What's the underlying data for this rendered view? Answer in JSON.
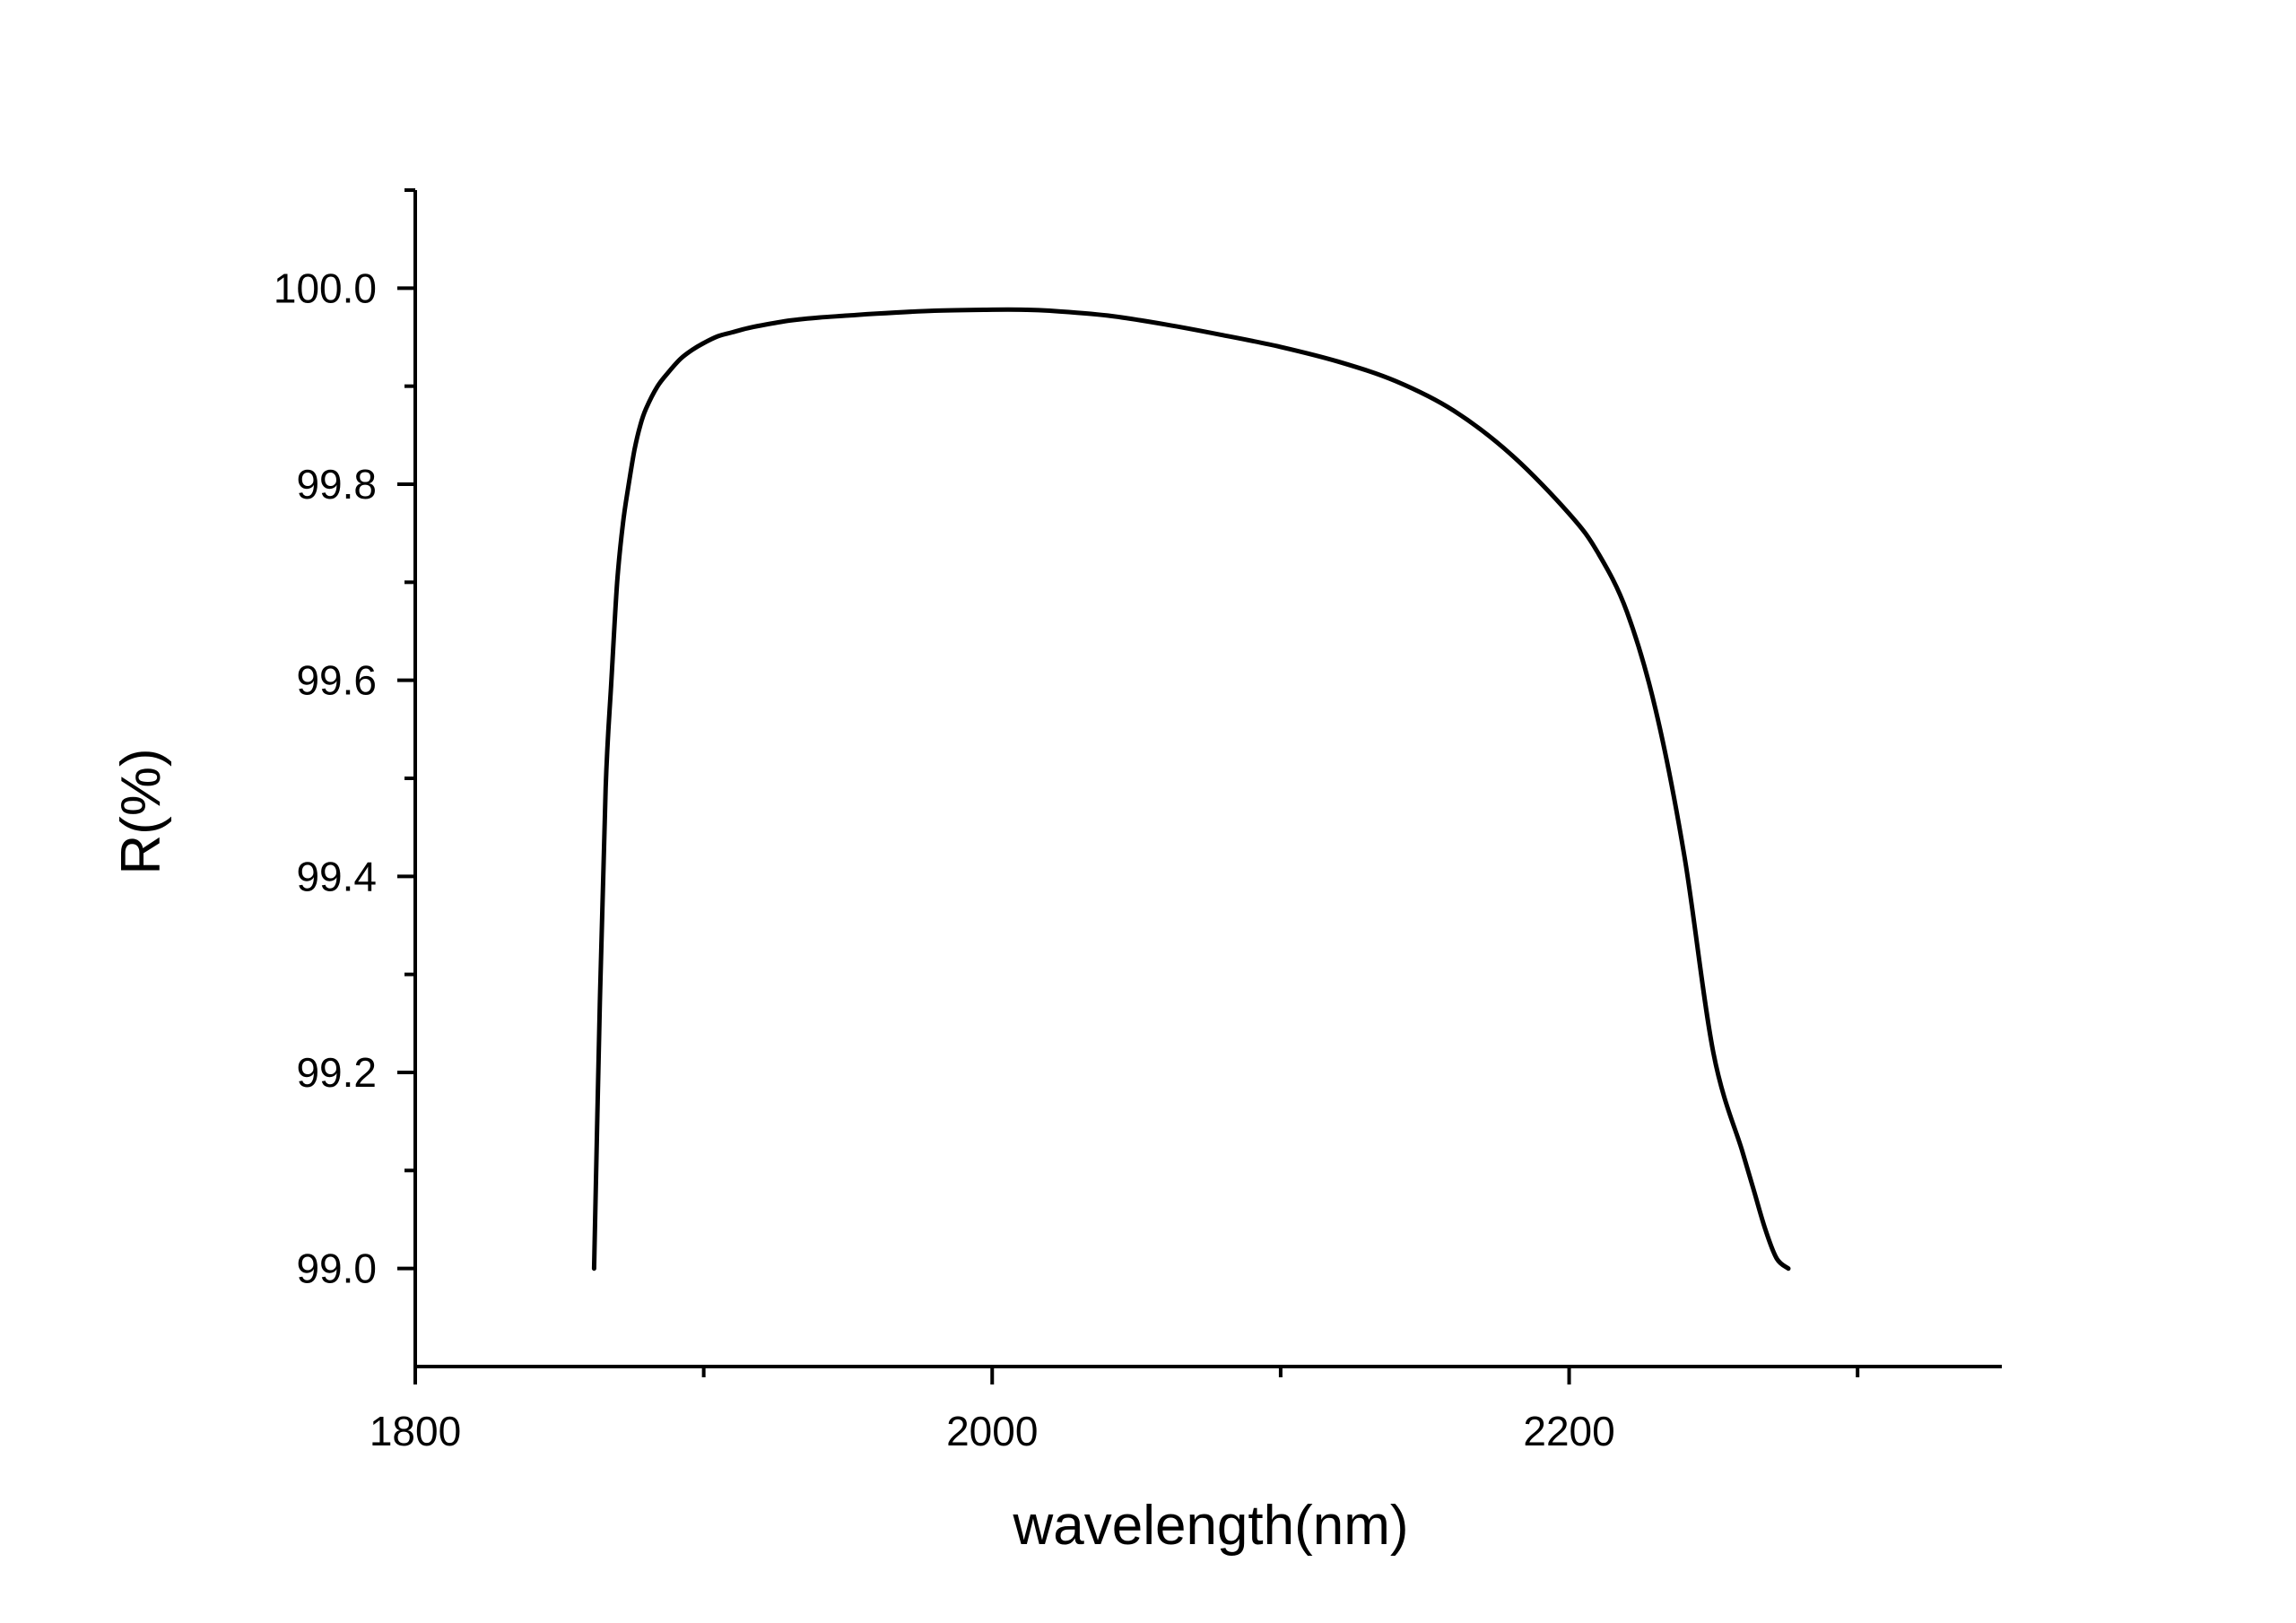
{
  "chart_data": {
    "type": "line",
    "title": "",
    "xlabel": "wavelength(nm)",
    "ylabel": "R(%)",
    "xlim": [
      1800,
      2350
    ],
    "ylim": [
      98.9,
      100.1
    ],
    "x_ticks": [
      1800,
      2000,
      2200
    ],
    "x_tick_labels": [
      "1800",
      "2000",
      "2200"
    ],
    "x_minor_ticks": [
      1900,
      2100,
      2300
    ],
    "y_ticks": [
      99.0,
      99.2,
      99.4,
      99.6,
      99.8,
      100.0
    ],
    "y_tick_labels": [
      "99.0",
      "99.2",
      "99.4",
      "99.6",
      "99.8",
      "100.0"
    ],
    "y_minor_ticks": [
      99.1,
      99.3,
      99.5,
      99.7,
      99.9,
      100.1
    ],
    "grid": false,
    "legend": "none",
    "line_color": "#000000",
    "series": [
      {
        "x": [
          1862,
          1864,
          1866,
          1868,
          1870,
          1872,
          1874,
          1876,
          1878,
          1880,
          1884,
          1888,
          1892,
          1896,
          1900,
          1905,
          1910,
          1915,
          1920,
          1930,
          1940,
          1950,
          1960,
          1980,
          2000,
          2010,
          2020,
          2040,
          2060,
          2080,
          2100,
          2120,
          2140,
          2160,
          2180,
          2200,
          2210,
          2220,
          2230,
          2240,
          2250,
          2260,
          2264,
          2268,
          2272,
          2276
        ],
        "y": [
          99.0,
          99.27,
          99.49,
          99.6,
          99.7,
          99.76,
          99.8,
          99.835,
          99.86,
          99.877,
          99.9,
          99.915,
          99.928,
          99.937,
          99.944,
          99.951,
          99.955,
          99.959,
          99.962,
          99.967,
          99.97,
          99.972,
          99.974,
          99.977,
          99.978,
          99.978,
          99.977,
          99.972,
          99.963,
          99.952,
          99.94,
          99.925,
          99.905,
          99.875,
          99.83,
          99.77,
          99.73,
          99.67,
          99.57,
          99.42,
          99.22,
          99.12,
          99.08,
          99.04,
          99.01,
          99.0
        ]
      }
    ]
  }
}
